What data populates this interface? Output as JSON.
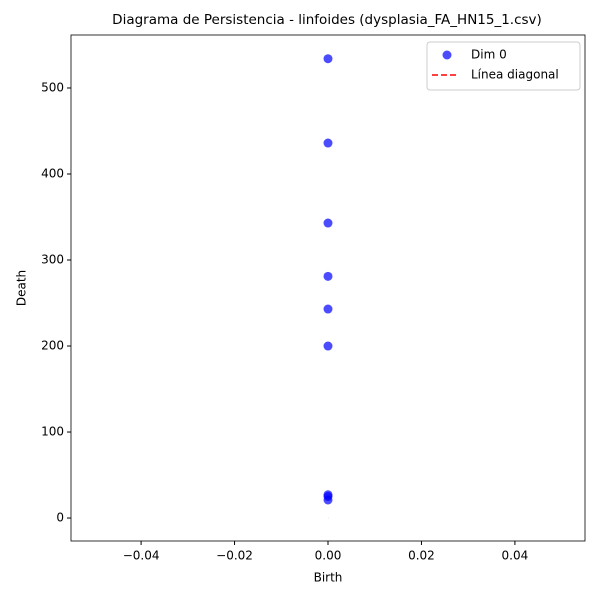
{
  "chart_data": {
    "type": "scatter",
    "title": "Diagrama de Persistencia - linfoides (dysplasia_FA_HN15_1.csv)",
    "x_label": "Birth",
    "y_label": "Death",
    "series": [
      {
        "name": "Dim 0",
        "color": "#0000ff",
        "x": [
          0,
          0,
          0,
          0,
          0,
          0,
          0,
          0,
          0
        ],
        "values": [
          534,
          436,
          343,
          281,
          243,
          200,
          27,
          25,
          21
        ]
      },
      {
        "name": "Línea diagonal",
        "color": "#ff0000",
        "style": "dashed",
        "x": [
          0,
          0
        ],
        "values": [
          0,
          0
        ]
      }
    ],
    "xlim": [
      -0.055,
      0.055
    ],
    "xticks": [
      {
        "value": -0.04,
        "label": "−0.04"
      },
      {
        "value": -0.02,
        "label": "−0.02"
      },
      {
        "value": 0,
        "label": "0.00"
      },
      {
        "value": 0.02,
        "label": "0.02"
      },
      {
        "value": 0.04,
        "label": "0.04"
      }
    ],
    "ylim": [
      -26.7,
      561.6
    ],
    "yticks": [
      0,
      100,
      200,
      300,
      400,
      500
    ],
    "legend": "upper right"
  }
}
